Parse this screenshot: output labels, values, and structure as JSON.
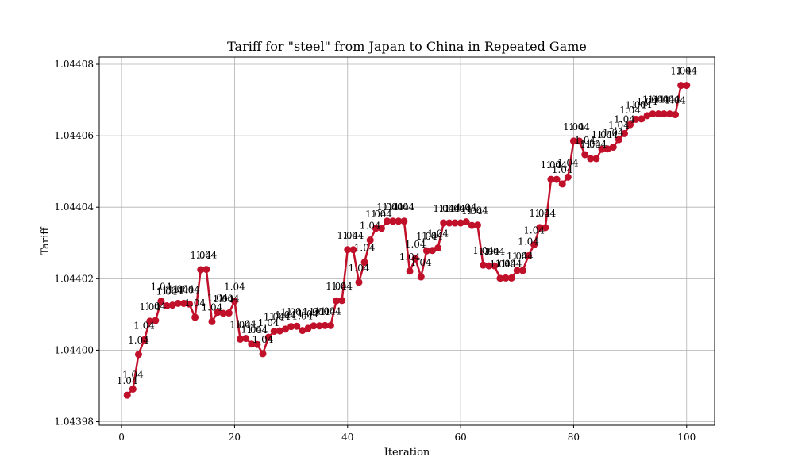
{
  "chart_data": {
    "type": "line",
    "title": "Tariff for \"steel\" from Japan to China in Repeated Game",
    "xlabel": "Iteration",
    "ylabel": "Tariff",
    "xlim": [
      -3.95,
      104.95
    ],
    "ylim": [
      1.043979,
      1.044082
    ],
    "xticks": [
      0,
      20,
      40,
      60,
      80,
      100
    ],
    "xtick_labels": [
      "0",
      "20",
      "40",
      "60",
      "80",
      "100"
    ],
    "yticks": [
      1.04398,
      1.044,
      1.04402,
      1.04404,
      1.04406,
      1.04408
    ],
    "ytick_labels": [
      "1.04398",
      "1.04400",
      "1.04402",
      "1.04404",
      "1.04406",
      "1.04408"
    ],
    "grid": true,
    "point_label": "1.04",
    "series": [
      {
        "color": "#c0102a",
        "x": [
          1,
          2,
          3,
          4,
          5,
          6,
          7,
          8,
          9,
          10,
          11,
          12,
          13,
          14,
          15,
          16,
          17,
          18,
          19,
          20,
          21,
          22,
          23,
          24,
          25,
          26,
          27,
          28,
          29,
          30,
          31,
          32,
          33,
          34,
          35,
          36,
          37,
          38,
          39,
          40,
          41,
          42,
          43,
          44,
          45,
          46,
          47,
          48,
          49,
          50,
          51,
          52,
          53,
          54,
          55,
          56,
          57,
          58,
          59,
          60,
          61,
          62,
          63,
          64,
          65,
          66,
          67,
          68,
          69,
          70,
          71,
          72,
          73,
          74,
          75,
          76,
          77,
          78,
          79,
          80,
          81,
          82,
          83,
          84,
          85,
          86,
          87,
          88,
          89,
          90,
          91,
          92,
          93,
          94,
          95,
          96,
          97,
          98,
          99,
          100
        ],
        "y": [
          1.0439874,
          1.0439891,
          1.0439988,
          1.0440029,
          1.0440081,
          1.0440083,
          1.0440137,
          1.0440124,
          1.0440126,
          1.0440131,
          1.0440131,
          1.0440129,
          1.0440092,
          1.0440225,
          1.0440226,
          1.044008,
          1.0440106,
          1.0440103,
          1.0440104,
          1.0440137,
          1.0440031,
          1.0440033,
          1.0440017,
          1.0440016,
          1.043999,
          1.0440036,
          1.0440053,
          1.0440054,
          1.0440059,
          1.0440066,
          1.0440067,
          1.0440055,
          1.0440061,
          1.0440068,
          1.0440068,
          1.0440069,
          1.0440069,
          1.0440138,
          1.0440139,
          1.0440281,
          1.0440281,
          1.044019,
          1.0440246,
          1.0440308,
          1.0440341,
          1.0440341,
          1.0440361,
          1.0440361,
          1.0440361,
          1.0440361,
          1.0440221,
          1.0440256,
          1.0440205,
          1.0440278,
          1.0440279,
          1.0440286,
          1.0440356,
          1.0440356,
          1.0440356,
          1.0440356,
          1.0440359,
          1.0440349,
          1.044035,
          1.0440238,
          1.0440236,
          1.0440236,
          1.0440201,
          1.0440202,
          1.0440202,
          1.0440223,
          1.0440223,
          1.0440264,
          1.0440295,
          1.0440343,
          1.0440343,
          1.0440478,
          1.0440478,
          1.0440465,
          1.0440484,
          1.0440585,
          1.0440585,
          1.0440547,
          1.0440536,
          1.0440536,
          1.0440562,
          1.0440563,
          1.0440568,
          1.0440589,
          1.0440606,
          1.0440631,
          1.0440646,
          1.0440647,
          1.0440656,
          1.0440661,
          1.0440661,
          1.0440661,
          1.0440661,
          1.0440659,
          1.0440741,
          1.0440741
        ]
      }
    ]
  }
}
